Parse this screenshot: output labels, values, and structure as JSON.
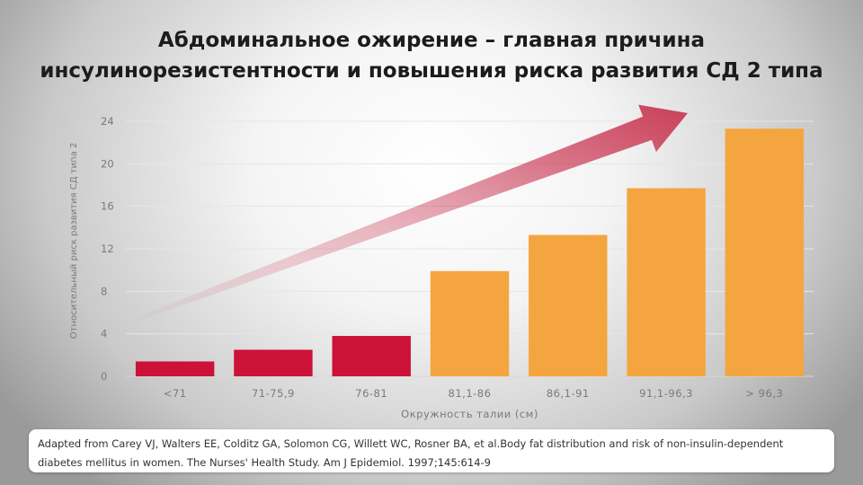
{
  "title": {
    "line1": "Абдоминальное ожирение – главная причина",
    "line2": "инсулинорезистентности и повышения риска развития СД 2 типа"
  },
  "chart_data": {
    "type": "bar",
    "title": "",
    "xlabel": "Окружность талии (см)",
    "ylabel": "Относительный риск развития СД типа 2",
    "categories": [
      "<71",
      "71-75,9",
      "76-81",
      "81,1-86",
      "86,1-91",
      "91,1-96,3",
      "> 96,3"
    ],
    "values": [
      1.4,
      2.5,
      3.8,
      9.9,
      13.3,
      17.7,
      23.3
    ],
    "bar_colors": [
      "#cc1236",
      "#cc1236",
      "#cc1236",
      "#f5a53f",
      "#f5a53f",
      "#f5a53f",
      "#f5a53f"
    ],
    "yticks": [
      0,
      4,
      8,
      12,
      16,
      20,
      24
    ],
    "ylim": [
      0,
      24
    ],
    "grid": true,
    "legend": false,
    "annotation": "arrow"
  },
  "colors": {
    "bar_low": "#cc1236",
    "bar_high": "#f5a53f",
    "arrow": "#c8324e",
    "axis_text": "#7a7a7a"
  },
  "reference": {
    "line1": "Adapted from Carey VJ, Walters EE, Colditz GA, Solomon CG, Willett WC, Rosner BA, et al.Body fat distribution and risk of non-insulin-dependent",
    "line2": "diabetes mellitus in women.  The Nurses' Health Study. Am J Epidemiol. 1997;145:614-9"
  }
}
